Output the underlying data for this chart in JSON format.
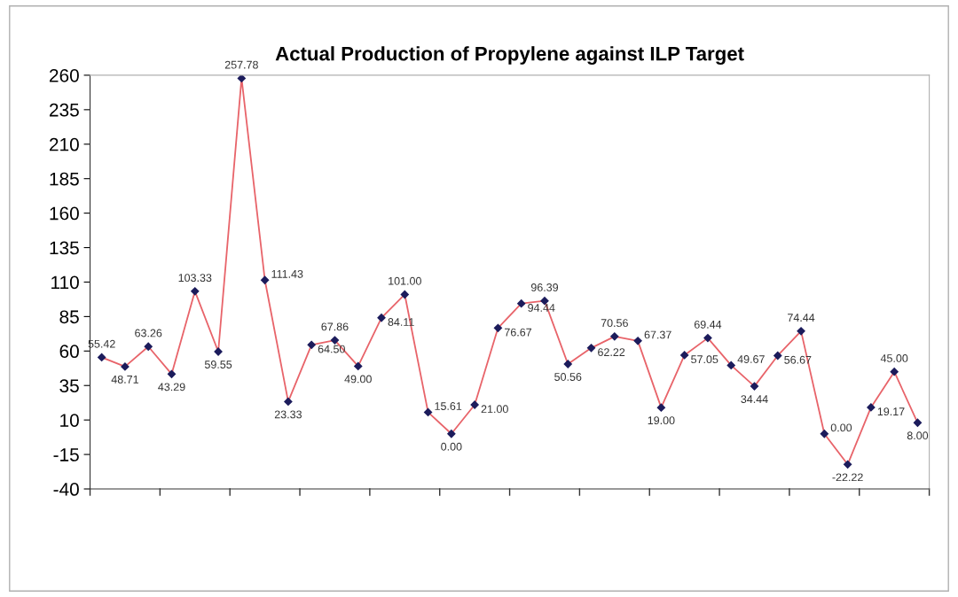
{
  "chart_data": {
    "type": "line",
    "title": "Actual Production of Propylene against ILP Target",
    "categories": [
      null,
      null,
      null,
      null,
      null,
      null,
      null,
      null,
      null,
      null,
      null,
      null,
      null,
      null,
      null,
      null,
      null,
      null,
      null,
      null,
      null,
      null,
      null,
      null,
      null,
      null,
      null,
      null,
      null,
      null,
      null,
      null,
      null,
      null,
      null,
      null
    ],
    "series": [
      {
        "color": "#e8646a",
        "values": [
          55.42,
          48.71,
          63.26,
          43.29,
          103.33,
          59.55,
          257.78,
          111.43,
          23.33,
          64.5,
          67.86,
          49.0,
          84.11,
          101.0,
          15.61,
          0.0,
          21.0,
          76.67,
          94.44,
          96.39,
          50.56,
          62.22,
          70.56,
          67.37,
          19.0,
          57.05,
          69.44,
          49.67,
          34.44,
          56.67,
          74.44,
          0.0,
          -22.22,
          19.17,
          45.0,
          8.0
        ]
      }
    ],
    "value_labels": [
      "55.42",
      "48.71",
      "63.26",
      "43.29",
      "103.33",
      "59.55",
      "257.78",
      "111.43",
      "23.33",
      "64.50",
      "67.86",
      "49.00",
      "84.11",
      "101.00",
      "15.61",
      "0.00",
      "21.00",
      "76.67",
      "94.44",
      "96.39",
      "50.56",
      "62.22",
      "70.56",
      "67.37",
      "19.00",
      "57.05",
      "69.44",
      "49.67",
      "34.44",
      "56.67",
      "74.44",
      "0.00",
      "-22.22",
      "19.17",
      "45.00",
      "8.00"
    ],
    "marker": "diamond",
    "line_style": "solid",
    "ylim": [
      -40,
      260
    ],
    "yticks": [
      -40,
      -15,
      10,
      35,
      60,
      85,
      110,
      135,
      160,
      185,
      210,
      235,
      260
    ],
    "grid": false
  }
}
